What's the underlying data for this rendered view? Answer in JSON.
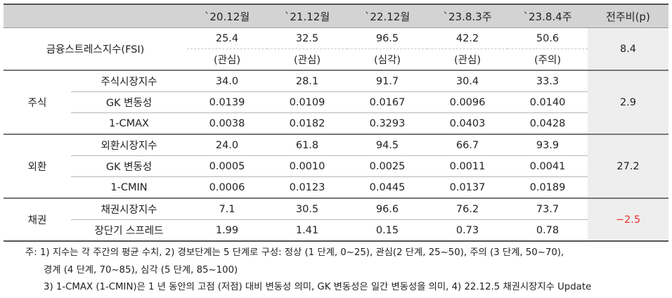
{
  "header": {
    "col0": "",
    "col1": "",
    "periods": [
      "`20.12월",
      "`21.12월",
      "`22.12월",
      "`23.8.3주",
      "`23.8.4주"
    ],
    "change": "전주비(p)"
  },
  "fsi": {
    "label": "금융스트레스지수(FSI)",
    "values": [
      "25.4",
      "32.5",
      "96.5",
      "42.2",
      "50.6"
    ],
    "stages": [
      "(관심)",
      "(관심)",
      "(심각)",
      "(관심)",
      "(주의)"
    ],
    "change": "8.4"
  },
  "groups": [
    {
      "name": "주식",
      "change": "2.9",
      "rows": [
        {
          "label": "주식시장지수",
          "values": [
            "34.0",
            "28.1",
            "91.7",
            "30.4",
            "33.3"
          ]
        },
        {
          "label": "GK 변동성",
          "values": [
            "0.0139",
            "0.0109",
            "0.0167",
            "0.0096",
            "0.0140"
          ]
        },
        {
          "label": "1-CMAX",
          "values": [
            "0.0038",
            "0.0182",
            "0.3293",
            "0.0403",
            "0.0428"
          ]
        }
      ]
    },
    {
      "name": "외환",
      "change": "27.2",
      "rows": [
        {
          "label": "외환시장지수",
          "values": [
            "24.0",
            "61.8",
            "94.5",
            "66.7",
            "93.9"
          ]
        },
        {
          "label": "GK 변동성",
          "values": [
            "0.0005",
            "0.0010",
            "0.0025",
            "0.0011",
            "0.0041"
          ]
        },
        {
          "label": "1-CMIN",
          "values": [
            "0.0006",
            "0.0123",
            "0.0445",
            "0.0137",
            "0.0189"
          ]
        }
      ]
    },
    {
      "name": "채권",
      "change": "-2.5",
      "rows": [
        {
          "label": "채권시장지수",
          "values": [
            "7.1",
            "30.5",
            "96.6",
            "76.2",
            "73.7"
          ]
        },
        {
          "label": "장단기 스프레드",
          "values": [
            "1.99",
            "1.41",
            "0.15",
            "0.73",
            "0.78"
          ]
        }
      ]
    }
  ],
  "notes": {
    "line1": "주: 1) 지수는 각 주간의 평균 수치, 2) 경보단계는 5 단계로 구성: 정상 (1 단계, 0~25), 관심(2 단계, 25~50), 주의 (3 단계, 50~70),",
    "line2": "경계 (4 단계, 70~85), 심각 (5 단계, 85~100)",
    "line3": "3) 1-CMAX (1-CMIN)은 1 년 동안의 고점 (저점) 대비 변동성 의미, GK 변동성은 일간 변동성을 의미, 4) 22.12.5 채권시장지수 Update"
  },
  "colors": {
    "negative": "#e8352e",
    "header_bg": "#d3d3d3",
    "change_bg": "#eeeeee"
  }
}
